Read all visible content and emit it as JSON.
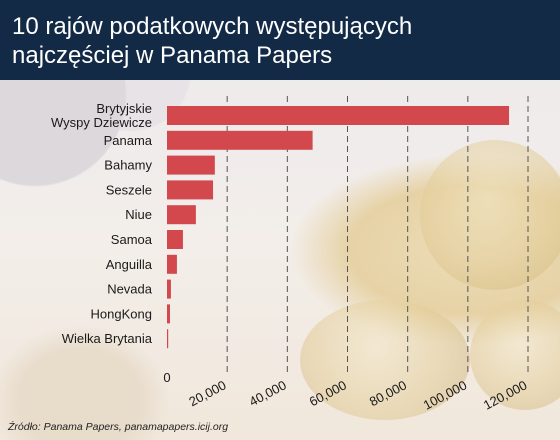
{
  "title_line1": "10 rajów podatkowych występujących",
  "title_line2": "najczęściej w Panama Papers",
  "source": "Źródło: Panama Papers, panamapapers.icij.org",
  "colors": {
    "title_bg": "#122a46",
    "bar": "#d2484c",
    "text": "#1a1a1a"
  },
  "chart_data": {
    "type": "bar",
    "orientation": "horizontal",
    "categories": [
      "Brytyjskie\nWyspy Dziewicze",
      "Panama",
      "Bahamy",
      "Seszele",
      "Niue",
      "Samoa",
      "Anguilla",
      "Nevada",
      "HongKong",
      "Wielka Brytania"
    ],
    "values": [
      113700,
      48400,
      15900,
      15300,
      9600,
      5300,
      3300,
      1300,
      1000,
      400
    ],
    "xlim": [
      0,
      120000
    ],
    "xticks": [
      {
        "value": 0,
        "label": "0"
      },
      {
        "value": 20000,
        "label": "20,000"
      },
      {
        "value": 40000,
        "label": "40,000"
      },
      {
        "value": 60000,
        "label": "60,000"
      },
      {
        "value": 80000,
        "label": "80,000"
      },
      {
        "value": 100000,
        "label": "100,000"
      },
      {
        "value": 120000,
        "label": "120,000"
      }
    ],
    "grid": true,
    "xlabel": "",
    "ylabel": ""
  }
}
